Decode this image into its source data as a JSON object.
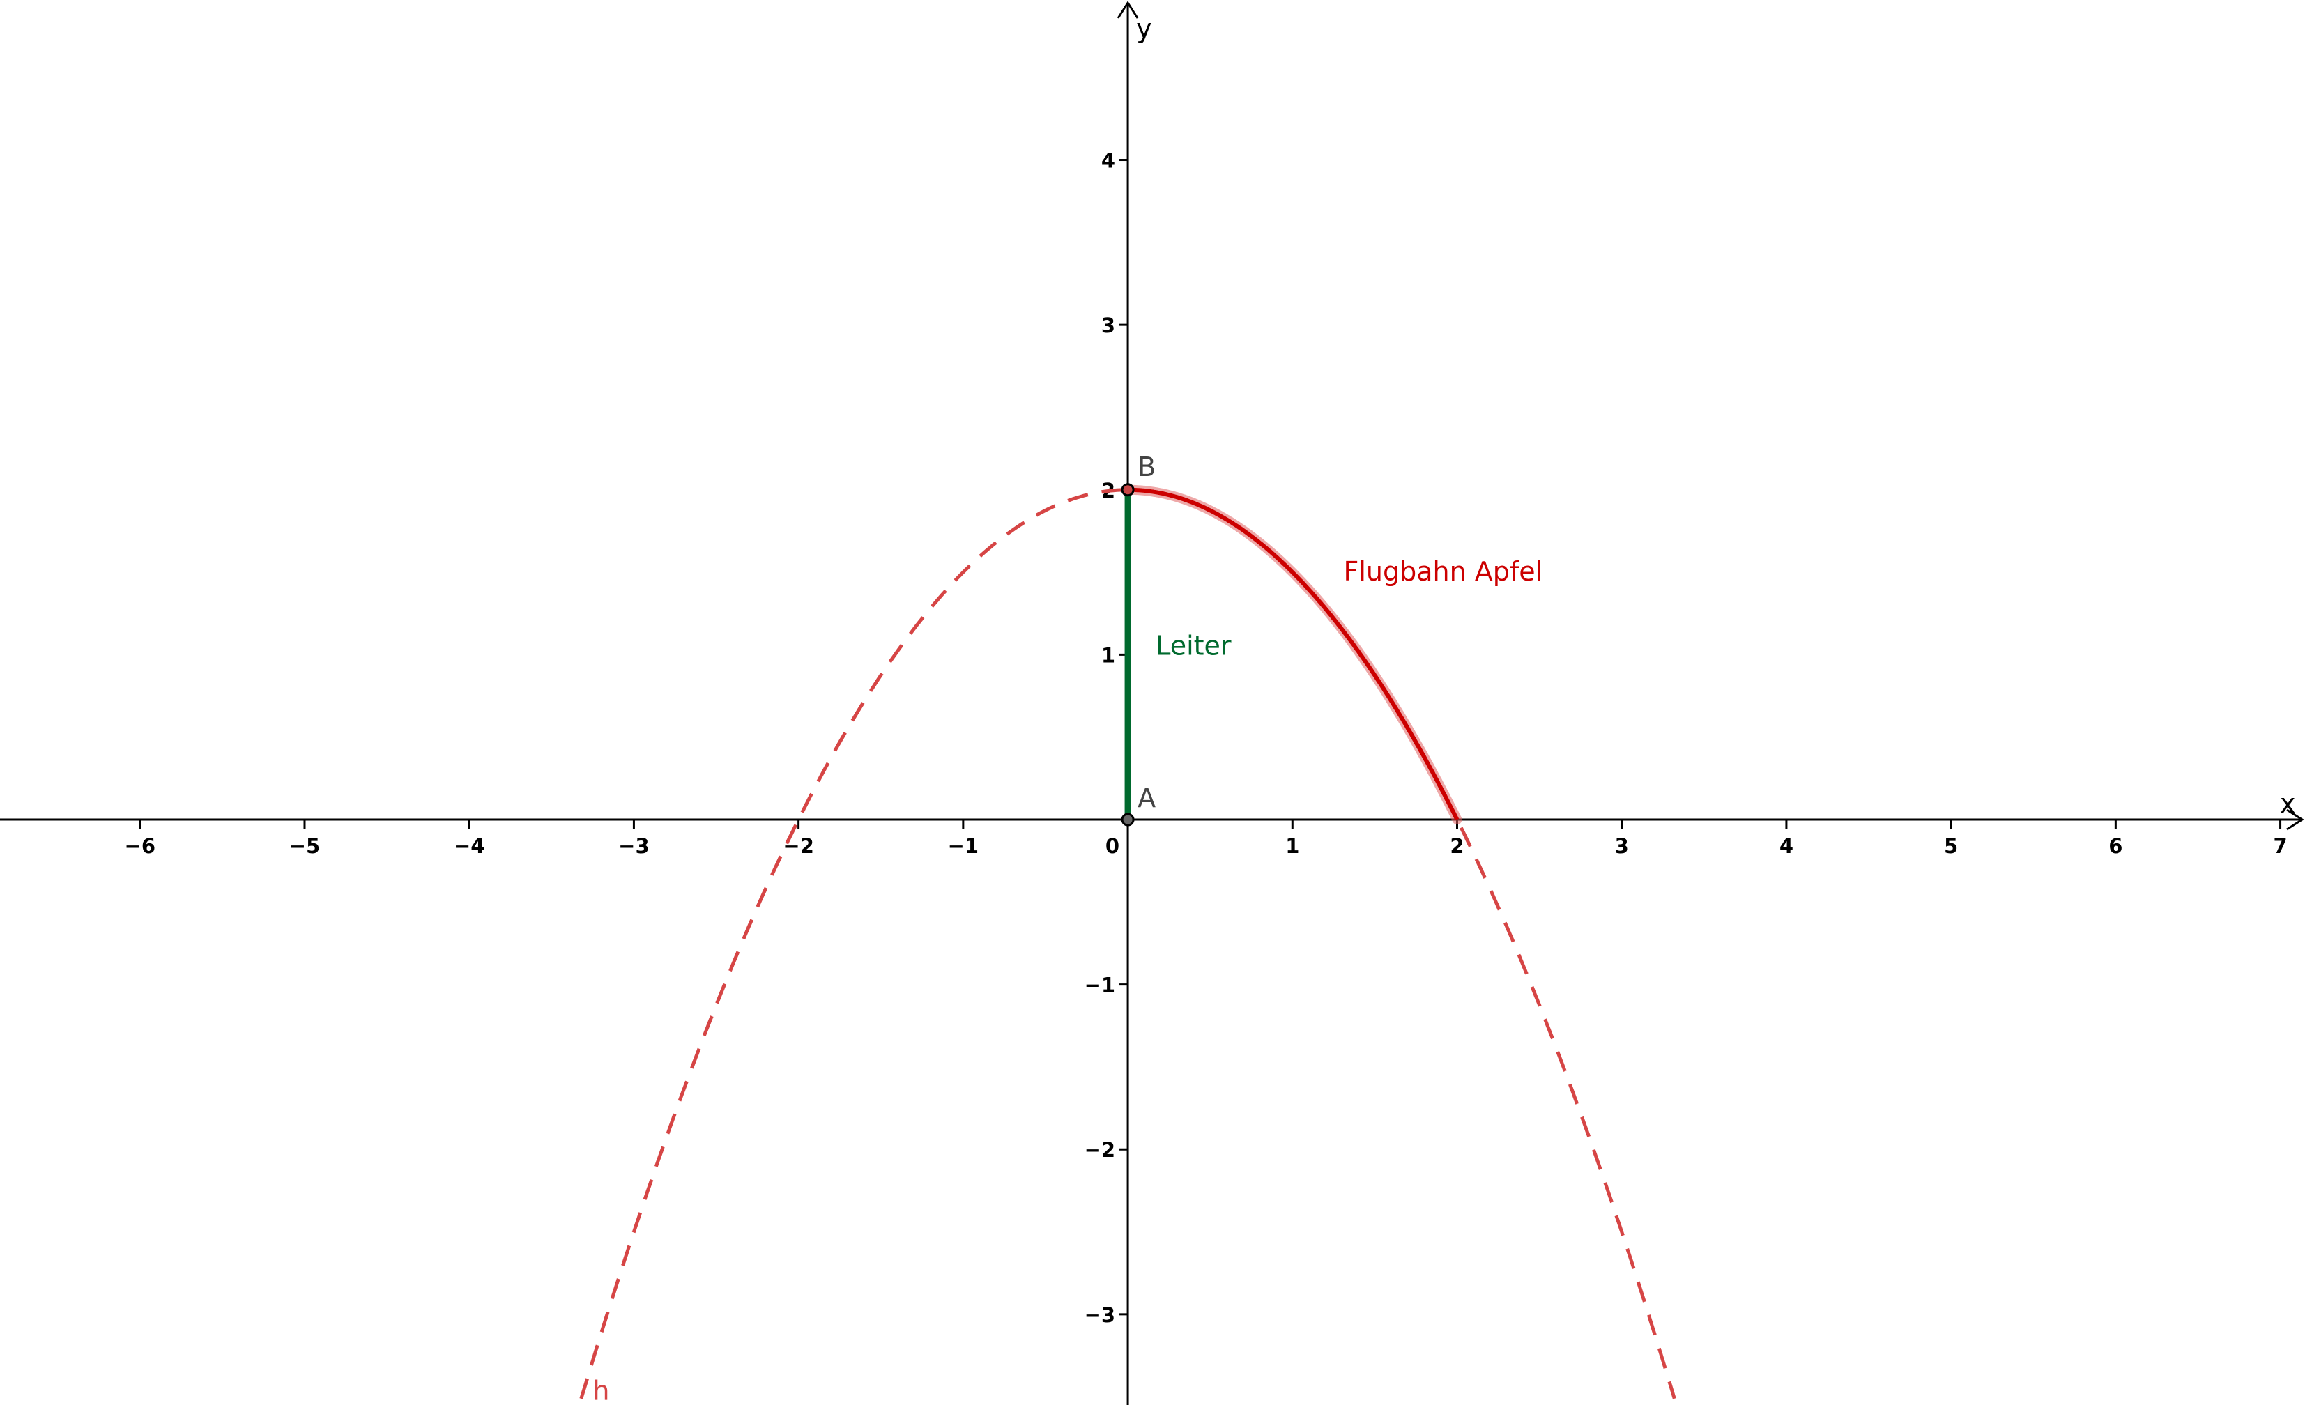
{
  "chart_data": {
    "type": "line",
    "title": "",
    "xlabel": "x",
    "ylabel": "y",
    "xlim": [
      -6.85,
      7.15
    ],
    "ylim": [
      -3.55,
      4.97
    ],
    "grid": false,
    "x_ticks": [
      -6,
      -5,
      -4,
      -3,
      -2,
      -1,
      0,
      1,
      2,
      3,
      4,
      5,
      6,
      7
    ],
    "y_ticks": [
      -3,
      -2,
      -1,
      1,
      2,
      3,
      4
    ],
    "x_tick_labels": [
      "−6",
      "−5",
      "−4",
      "−3",
      "−2",
      "−1",
      "0",
      "1",
      "2",
      "3",
      "4",
      "5",
      "6",
      "7"
    ],
    "y_tick_labels": [
      "−3",
      "−2",
      "−1",
      "1",
      "2",
      "3",
      "4"
    ],
    "series": [
      {
        "name": "h",
        "kind": "parabola",
        "style": "dashed",
        "color": "#d64545",
        "domain": [
          -3.32,
          3.32
        ],
        "x": [
          -3.3,
          -3,
          -2.5,
          -2,
          -1.5,
          -1,
          -0.5,
          0,
          0.5,
          1,
          1.5,
          2,
          2.5,
          3,
          3.3
        ],
        "y": [
          -3.445,
          -2.5,
          -1.125,
          0,
          0.875,
          1.5,
          1.875,
          2,
          1.875,
          1.5,
          0.875,
          0,
          -1.125,
          -2.5,
          -3.445
        ]
      },
      {
        "name": "Flugbahn Apfel",
        "kind": "parabola-segment",
        "style": "solid",
        "color": "#cc0000",
        "domain": [
          0,
          2
        ],
        "x": [
          0,
          0.25,
          0.5,
          0.75,
          1,
          1.25,
          1.5,
          1.75,
          2
        ],
        "y": [
          2,
          1.96875,
          1.875,
          1.71875,
          1.5,
          1.21875,
          0.875,
          0.46875,
          0
        ]
      },
      {
        "name": "Leiter",
        "kind": "segment",
        "style": "solid",
        "color": "#006a2e",
        "x": [
          0,
          0
        ],
        "y": [
          0,
          2
        ]
      }
    ],
    "points": [
      {
        "name": "A",
        "x": 0,
        "y": 0
      },
      {
        "name": "B",
        "x": 0,
        "y": 2
      }
    ]
  },
  "labels": {
    "x_axis": "x",
    "y_axis": "y",
    "point_a": "A",
    "point_b": "B",
    "curve_h": "h",
    "flugbahn": "Flugbahn Apfel",
    "leiter": "Leiter"
  },
  "colors": {
    "curve_h": "#d64545",
    "flugbahn": "#cc0000",
    "leiter": "#006a2e",
    "point_b_fill": "#c84545",
    "point_a_fill": "#666666",
    "axis": "#000000"
  }
}
